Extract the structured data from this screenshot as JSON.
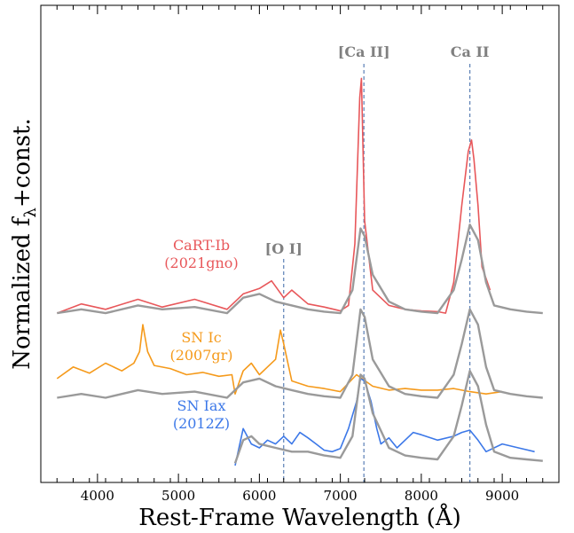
{
  "chart_data": {
    "type": "line",
    "xlabel": "Rest-Frame Wavelength (Å)",
    "ylabel_main": "Normalized f",
    "ylabel_sub": "λ",
    "ylabel_tail": "+const.",
    "xlim": [
      3300,
      9700
    ],
    "ylim": [
      -0.2,
      6.0
    ],
    "x_ticks": [
      4000,
      5000,
      6000,
      7000,
      8000,
      9000
    ],
    "lines": [
      {
        "label": "[O I]",
        "x": 6300
      },
      {
        "label": "[Ca II]",
        "x": 7291
      },
      {
        "label": "Ca II",
        "x": 8600
      }
    ],
    "series": [
      {
        "name": "CaRT-Ib",
        "label": [
          "CaRT-Ib",
          "(2021gno)"
        ],
        "color": "#e8575a",
        "x": [
          3500,
          3800,
          4100,
          4500,
          4800,
          5200,
          5600,
          5800,
          6000,
          6150,
          6300,
          6400,
          6600,
          6800,
          7000,
          7100,
          7180,
          7240,
          7260,
          7300,
          7400,
          7600,
          7800,
          8000,
          8200,
          8300,
          8400,
          8500,
          8580,
          8620,
          8650,
          8700,
          8750,
          8800,
          8850
        ],
        "y": [
          2.0,
          2.12,
          2.05,
          2.18,
          2.08,
          2.18,
          2.05,
          2.25,
          2.32,
          2.42,
          2.2,
          2.3,
          2.12,
          2.08,
          2.03,
          2.1,
          2.9,
          4.8,
          5.05,
          3.2,
          2.3,
          2.1,
          2.05,
          2.03,
          2.02,
          2.0,
          2.4,
          3.4,
          4.1,
          4.25,
          4.0,
          3.4,
          2.6,
          2.45,
          2.3
        ]
      },
      {
        "name": "SN Ic",
        "label": [
          "SN Ic",
          "(2007gr)"
        ],
        "color": "#f59a1b",
        "x": [
          3500,
          3700,
          3900,
          4100,
          4300,
          4450,
          4520,
          4560,
          4620,
          4700,
          4900,
          5100,
          5300,
          5500,
          5660,
          5700,
          5800,
          5900,
          6000,
          6100,
          6200,
          6260,
          6300,
          6400,
          6600,
          6800,
          7000,
          7200,
          7400,
          7600,
          7800,
          8000,
          8200,
          8400,
          8600,
          8800,
          9000
        ],
        "y": [
          1.15,
          1.3,
          1.22,
          1.35,
          1.25,
          1.35,
          1.5,
          1.85,
          1.5,
          1.32,
          1.28,
          1.2,
          1.23,
          1.18,
          1.2,
          0.95,
          1.25,
          1.35,
          1.2,
          1.3,
          1.4,
          1.78,
          1.6,
          1.12,
          1.05,
          1.02,
          0.98,
          1.2,
          1.05,
          1.0,
          1.02,
          1.0,
          1.0,
          1.02,
          0.98,
          0.95,
          0.98
        ]
      },
      {
        "name": "SN Iax",
        "label": [
          "SN Iax",
          "(2012Z)"
        ],
        "color": "#3c78e8",
        "x": [
          5700,
          5800,
          5900,
          6000,
          6100,
          6200,
          6300,
          6400,
          6500,
          6600,
          6700,
          6800,
          6900,
          7000,
          7100,
          7200,
          7250,
          7300,
          7380,
          7450,
          7500,
          7600,
          7700,
          7800,
          7900,
          8000,
          8200,
          8400,
          8500,
          8600,
          8700,
          8800,
          9000,
          9200,
          9400
        ],
        "y": [
          0.02,
          0.5,
          0.3,
          0.25,
          0.35,
          0.3,
          0.4,
          0.3,
          0.45,
          0.38,
          0.3,
          0.22,
          0.2,
          0.24,
          0.5,
          0.85,
          1.15,
          1.12,
          0.85,
          0.5,
          0.3,
          0.38,
          0.25,
          0.35,
          0.45,
          0.42,
          0.35,
          0.4,
          0.45,
          0.48,
          0.35,
          0.2,
          0.3,
          0.25,
          0.2
        ]
      },
      {
        "name": "comparison-top",
        "color": "#9a9a9a",
        "x": [
          3500,
          3800,
          4100,
          4500,
          4800,
          5200,
          5600,
          5800,
          6000,
          6200,
          6400,
          6600,
          6800,
          7000,
          7150,
          7250,
          7300,
          7400,
          7600,
          7800,
          8000,
          8200,
          8400,
          8500,
          8600,
          8700,
          8800,
          8900,
          9100,
          9300,
          9500
        ],
        "y": [
          2.0,
          2.05,
          2.0,
          2.1,
          2.05,
          2.08,
          2.0,
          2.2,
          2.25,
          2.15,
          2.1,
          2.05,
          2.02,
          2.0,
          2.3,
          3.1,
          3.0,
          2.5,
          2.15,
          2.05,
          2.02,
          2.0,
          2.3,
          2.7,
          3.15,
          2.95,
          2.4,
          2.1,
          2.05,
          2.02,
          2.0
        ]
      },
      {
        "name": "comparison-middle",
        "color": "#9a9a9a",
        "x": [
          3500,
          3800,
          4100,
          4500,
          4800,
          5200,
          5600,
          5800,
          6000,
          6200,
          6400,
          6600,
          6800,
          7000,
          7150,
          7250,
          7300,
          7400,
          7600,
          7800,
          8000,
          8200,
          8400,
          8500,
          8600,
          8700,
          8800,
          8900,
          9100,
          9300,
          9500
        ],
        "y": [
          0.9,
          0.95,
          0.9,
          1.0,
          0.95,
          0.98,
          0.9,
          1.1,
          1.15,
          1.05,
          1.0,
          0.95,
          0.92,
          0.9,
          1.2,
          2.05,
          1.95,
          1.4,
          1.05,
          0.95,
          0.92,
          0.9,
          1.2,
          1.6,
          2.05,
          1.85,
          1.3,
          1.0,
          0.95,
          0.92,
          0.9
        ]
      },
      {
        "name": "comparison-bottom",
        "color": "#9a9a9a",
        "x": [
          5700,
          5800,
          5900,
          6000,
          6200,
          6400,
          6600,
          6800,
          7000,
          7150,
          7250,
          7300,
          7400,
          7600,
          7800,
          8000,
          8200,
          8400,
          8500,
          8600,
          8700,
          8800,
          8900,
          9100,
          9300,
          9500
        ],
        "y": [
          0.05,
          0.35,
          0.4,
          0.3,
          0.25,
          0.2,
          0.2,
          0.15,
          0.12,
          0.4,
          1.2,
          1.15,
          0.7,
          0.25,
          0.15,
          0.12,
          0.1,
          0.4,
          0.8,
          1.25,
          1.05,
          0.55,
          0.2,
          0.12,
          0.1,
          0.08
        ]
      }
    ]
  }
}
